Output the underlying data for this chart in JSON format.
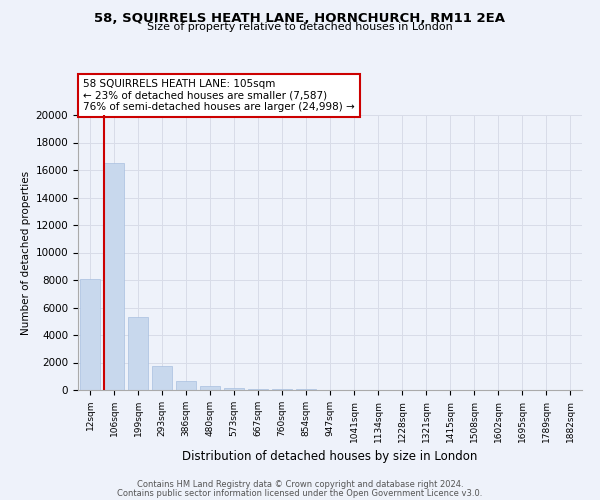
{
  "title1": "58, SQUIRRELS HEATH LANE, HORNCHURCH, RM11 2EA",
  "title2": "Size of property relative to detached houses in London",
  "xlabel": "Distribution of detached houses by size in London",
  "ylabel": "Number of detached properties",
  "bar_labels": [
    "12sqm",
    "106sqm",
    "199sqm",
    "293sqm",
    "386sqm",
    "480sqm",
    "573sqm",
    "667sqm",
    "760sqm",
    "854sqm",
    "947sqm",
    "1041sqm",
    "1134sqm",
    "1228sqm",
    "1321sqm",
    "1415sqm",
    "1508sqm",
    "1602sqm",
    "1695sqm",
    "1789sqm",
    "1882sqm"
  ],
  "bar_values": [
    8100,
    16500,
    5300,
    1750,
    620,
    280,
    170,
    100,
    80,
    50,
    35,
    20,
    12,
    8,
    5,
    4,
    3,
    2,
    2,
    1,
    1
  ],
  "bar_color": "#c8d8ed",
  "bar_edge_color": "#a8c0e0",
  "vline_color": "#cc0000",
  "annotation_title": "58 SQUIRRELS HEATH LANE: 105sqm",
  "annotation_line1": "← 23% of detached houses are smaller (7,587)",
  "annotation_line2": "76% of semi-detached houses are larger (24,998) →",
  "annotation_box_edge_color": "#cc0000",
  "ylim": [
    0,
    20000
  ],
  "yticks": [
    0,
    2000,
    4000,
    6000,
    8000,
    10000,
    12000,
    14000,
    16000,
    18000,
    20000
  ],
  "footer1": "Contains HM Land Registry data © Crown copyright and database right 2024.",
  "footer2": "Contains public sector information licensed under the Open Government Licence v3.0.",
  "bg_color": "#eef2fa",
  "grid_color": "#d8dce8",
  "spine_color": "#aaaaaa"
}
